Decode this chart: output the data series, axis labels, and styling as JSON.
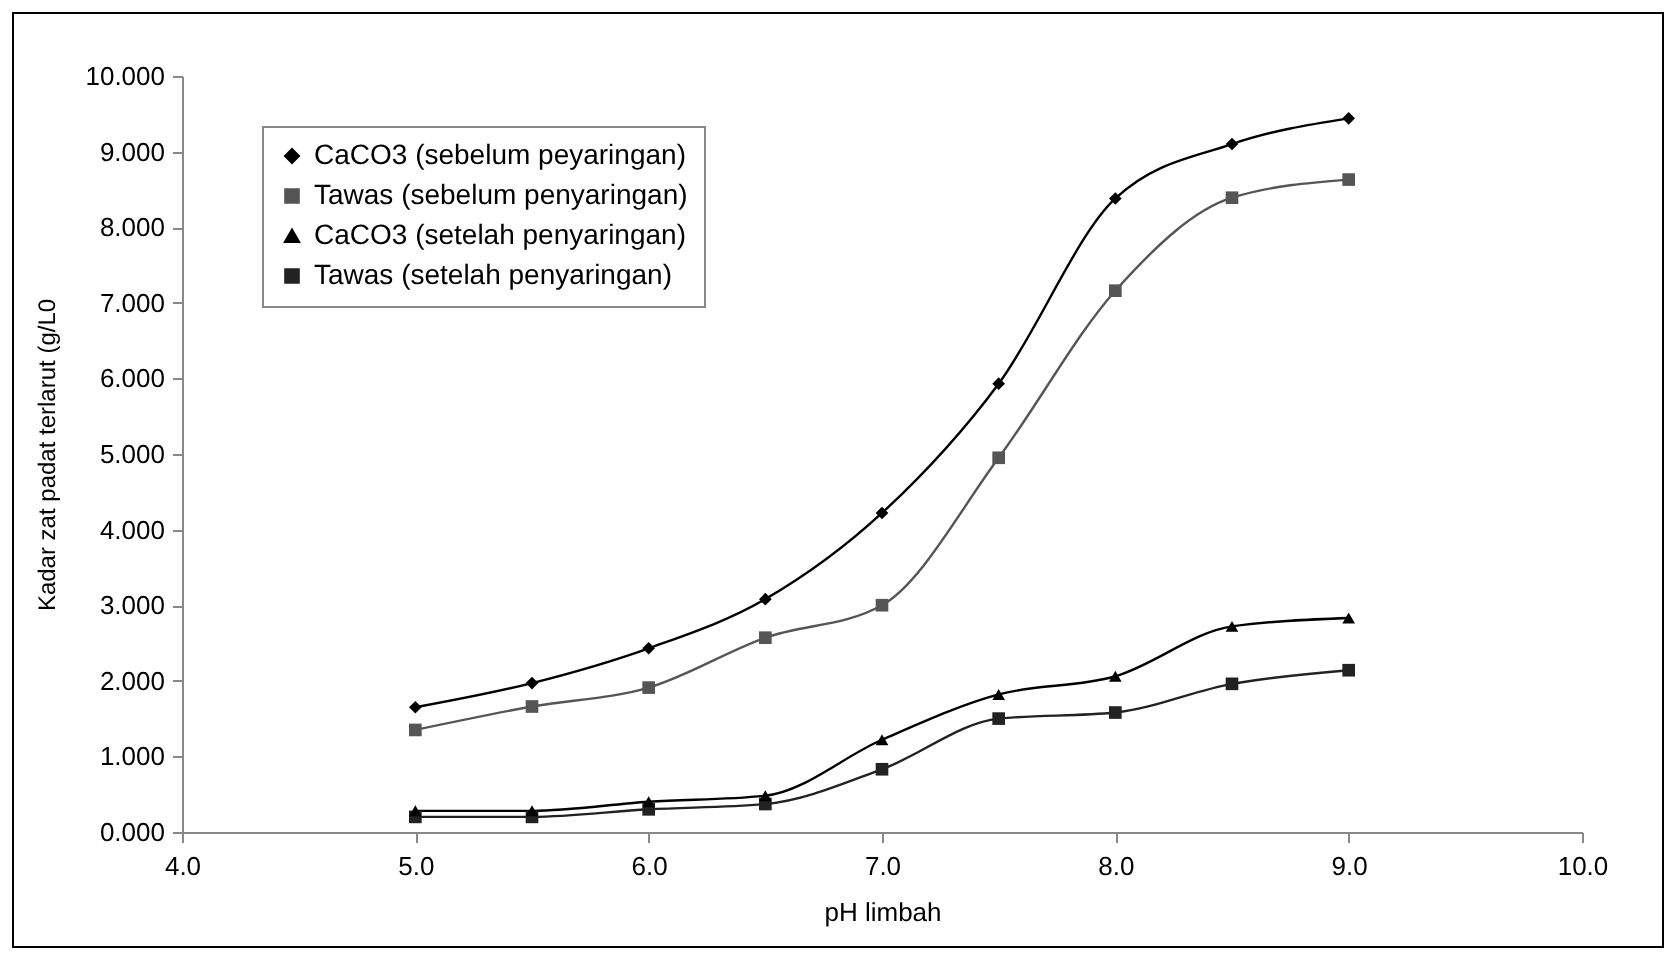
{
  "chart_data": {
    "type": "line",
    "xlabel": "pH limbah",
    "ylabel": "Kadar zat padat terlarut (g/L0",
    "x": [
      5.0,
      5.5,
      6.0,
      6.5,
      7.0,
      7.5,
      8.0,
      8.5,
      9.0
    ],
    "series": [
      {
        "name": "CaCO3 (sebelum peyaringan)",
        "color": "#000000",
        "marker": "diamond",
        "values": [
          1.65,
          1.97,
          2.43,
          3.08,
          4.22,
          5.93,
          8.38,
          9.1,
          9.44
        ]
      },
      {
        "name": "Tawas (sebelum penyaringan)",
        "color": "#555555",
        "marker": "square",
        "values": [
          1.35,
          1.66,
          1.91,
          2.57,
          3.0,
          4.95,
          7.16,
          8.39,
          8.63
        ]
      },
      {
        "name": "CaCO3 (setelah penyaringan)",
        "color": "#000000",
        "marker": "triangle",
        "values": [
          0.28,
          0.28,
          0.4,
          0.48,
          1.22,
          1.82,
          2.06,
          2.72,
          2.83
        ]
      },
      {
        "name": "Tawas (setelah penyaringan)",
        "color": "#222222",
        "marker": "square",
        "values": [
          0.2,
          0.2,
          0.3,
          0.37,
          0.83,
          1.5,
          1.58,
          1.96,
          2.14
        ]
      }
    ],
    "xlim": [
      4.0,
      10.0
    ],
    "xticks": [
      {
        "value": 4,
        "label": "4.0"
      },
      {
        "value": 5,
        "label": "5.0"
      },
      {
        "value": 6,
        "label": "6.0"
      },
      {
        "value": 7,
        "label": "7.0"
      },
      {
        "value": 8,
        "label": "8.0"
      },
      {
        "value": 9,
        "label": "9.0"
      },
      {
        "value": 10,
        "label": "10.0"
      }
    ],
    "ylim": [
      0,
      10
    ],
    "yticks": [
      {
        "value": 0,
        "label": "0.000"
      },
      {
        "value": 1,
        "label": "1.000"
      },
      {
        "value": 2,
        "label": "2.000"
      },
      {
        "value": 3,
        "label": "3.000"
      },
      {
        "value": 4,
        "label": "4.000"
      },
      {
        "value": 5,
        "label": "5.000"
      },
      {
        "value": 6,
        "label": "6.000"
      },
      {
        "value": 7,
        "label": "7.000"
      },
      {
        "value": 8,
        "label": "8.000"
      },
      {
        "value": 9,
        "label": "9.000"
      },
      {
        "value": 10,
        "label": "10.000"
      }
    ],
    "legend": "top left",
    "grid": false,
    "line_style": "solid"
  }
}
